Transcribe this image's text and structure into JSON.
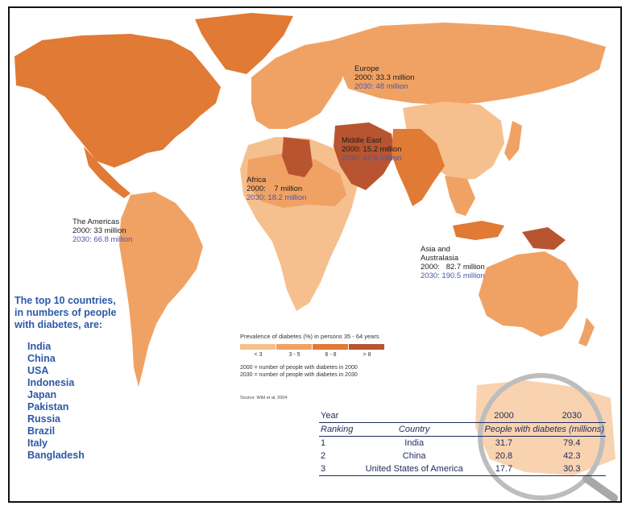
{
  "regions": {
    "americas": {
      "name": "The Americas",
      "y2000": "2000: 33 million",
      "y2030": "2030: 66.8 million"
    },
    "europe": {
      "name": "Europe",
      "y2000": "2000: 33.3 million",
      "y2030": "2030: 48 million"
    },
    "middle_east": {
      "name": "Middle East",
      "y2000": "2000: 15.2 million",
      "y2030": "2030: 42.6 million"
    },
    "africa": {
      "name": "Africa",
      "y2000": "2000:    7 million",
      "y2030": "2030: 18.2 million"
    },
    "asia": {
      "name1": "Asia and",
      "name2": "Australasia",
      "y2000": "2000:   82.7 million",
      "y2030": "2030: 190.5 million"
    }
  },
  "top10": {
    "title_line1": "The top 10 countries,",
    "title_line2": "in numbers of people",
    "title_line3": "with diabetes, are:",
    "countries": [
      "India",
      "China",
      "USA",
      "Indonesia",
      "Japan",
      "Pakistan",
      "Russia",
      "Brazil",
      "Italy",
      "Bangladesh"
    ]
  },
  "legend": {
    "title": "Prevalence of diabetes (%) in persons 35 - 64 years",
    "categories": [
      {
        "label": "< 3",
        "color": "#f6c08e"
      },
      {
        "label": "3 - 5",
        "color": "#f0a264"
      },
      {
        "label": "6 - 8",
        "color": "#e07a35"
      },
      {
        "label": "> 8",
        "color": "#b85530"
      }
    ],
    "note_2000": "2000 = number of people with diabetes in 2000",
    "note_2030": "2030 = number of people with diabetes in 2030"
  },
  "source": "Source: Wild et al, 2004",
  "table": {
    "year_label": "Year",
    "ranking_label": "Ranking",
    "country_label": "Country",
    "people_label": "People with diabetes (millions)",
    "y2000_label": "2000",
    "y2030_label": "2030",
    "rows": [
      {
        "rank": "1",
        "country": "India",
        "v2000": "31.7",
        "v2030": "79.4"
      },
      {
        "rank": "2",
        "country": "China",
        "v2000": "20.8",
        "v2030": "42.3"
      },
      {
        "rank": "3",
        "country": "United States of America",
        "v2000": "17.7",
        "v2030": "30.3"
      }
    ]
  },
  "colors": {
    "low": "#f6c08e",
    "mid": "#f0a264",
    "high": "#e07a35",
    "very_high": "#b85530",
    "blue_text": "#2d58a8",
    "water": "#ffffff"
  }
}
